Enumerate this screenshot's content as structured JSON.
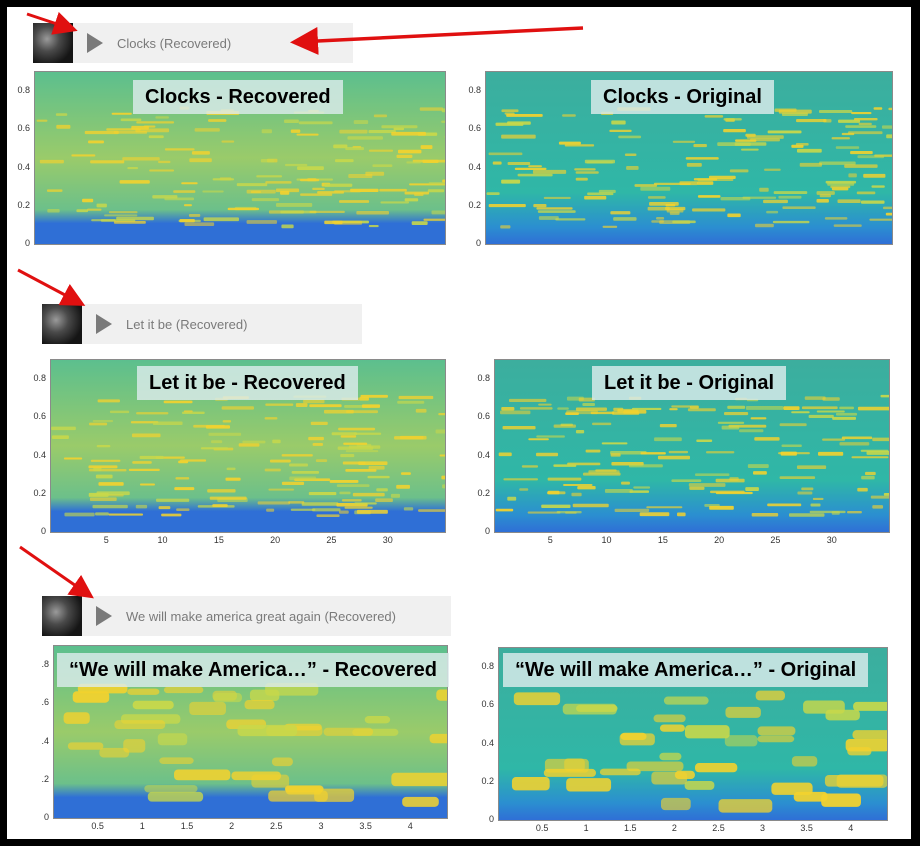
{
  "players": [
    {
      "track": "Clocks (Recovered)"
    },
    {
      "track": "Let it be (Recovered)"
    },
    {
      "track": "We will make america great again (Recovered)"
    }
  ],
  "plots": [
    {
      "title": "Clocks - Recovered",
      "y_ticks": [
        "0.8",
        "0.6",
        "0.4",
        "0.2",
        "0"
      ],
      "x_ticks": []
    },
    {
      "title": "Clocks - Original",
      "y_ticks": [
        "0.8",
        "0.6",
        "0.4",
        "0.2",
        "0"
      ],
      "x_ticks": []
    },
    {
      "title": "Let it be - Recovered",
      "y_ticks": [
        "0.8",
        "0.6",
        "0.4",
        "0.2",
        "0"
      ],
      "x_ticks": [
        "5",
        "10",
        "15",
        "20",
        "25",
        "30"
      ]
    },
    {
      "title": "Let it be - Original",
      "y_ticks": [
        "0.8",
        "0.6",
        "0.4",
        "0.2",
        "0"
      ],
      "x_ticks": [
        "5",
        "10",
        "15",
        "20",
        "25",
        "30"
      ]
    },
    {
      "title": "“We will make America…” - Recovered",
      "y_ticks": [
        ".8",
        ".6",
        ".4",
        ".2",
        "0"
      ],
      "x_ticks": [
        "0.5",
        "1",
        "1.5",
        "2",
        "2.5",
        "3",
        "3.5",
        "4"
      ]
    },
    {
      "title": "“We will make America…” - Original",
      "y_ticks": [
        "0.8",
        "0.6",
        "0.4",
        "0.2",
        "0"
      ],
      "x_ticks": [
        "0.5",
        "1",
        "1.5",
        "2",
        "2.5",
        "3",
        "3.5",
        "4"
      ]
    }
  ],
  "colors": {
    "arrow": "#e01010",
    "spec_low": "#2f6fd6",
    "spec_mid": "#2fb7a7",
    "spec_high": "#f2d22e"
  }
}
